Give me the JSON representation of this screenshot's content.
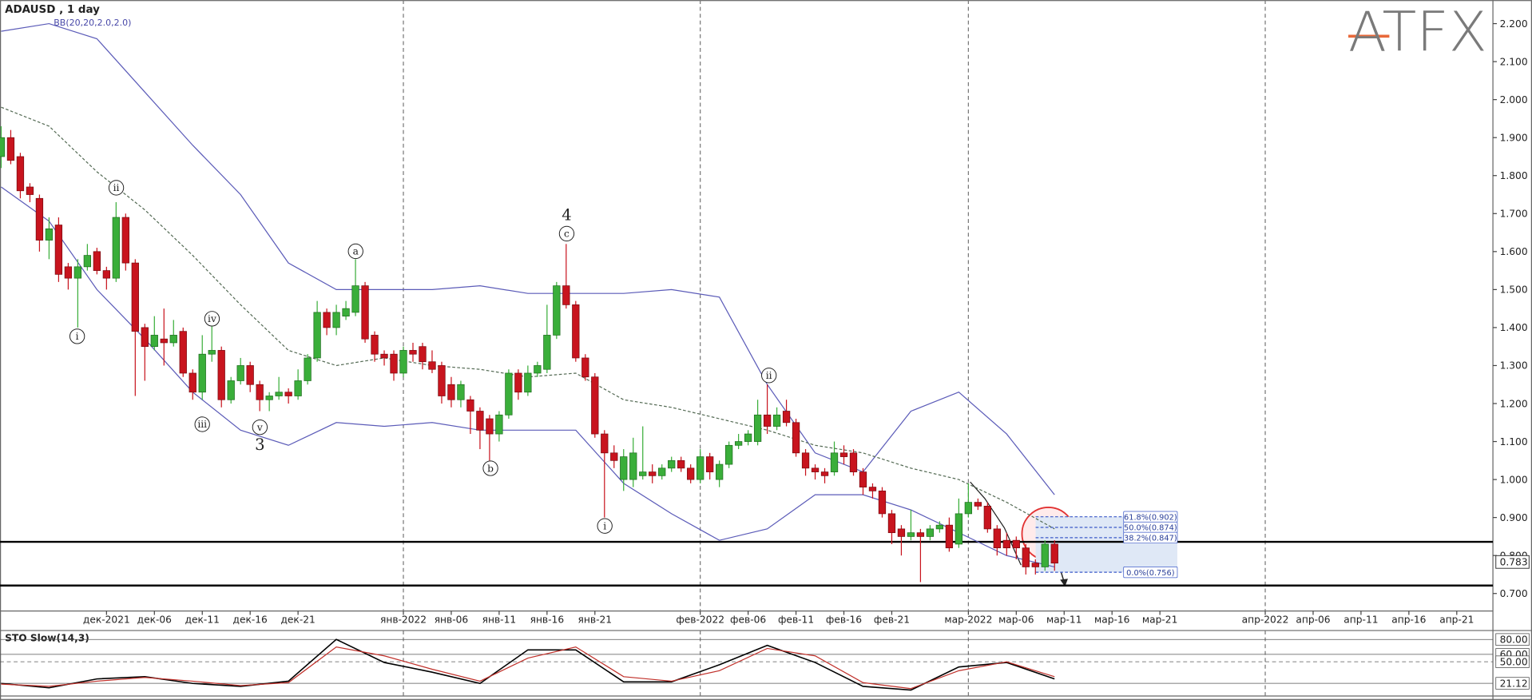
{
  "chart_data": [
    {
      "type": "candlestick",
      "title": "ADAUSD , 1 day",
      "indicator_label": "BB(20,20,2.0,2.0)",
      "logo": "ATFX",
      "up_color": "#3aae3a",
      "down_color": "#c8141e",
      "band_color": "#5b5bb8",
      "middle_color": "#556b55",
      "xlim": [
        "2021-11-20",
        "2022-04-24"
      ],
      "ylim": [
        0.654,
        2.262
      ],
      "yticks": [
        {
          "value": 2.2,
          "label": "2.200"
        },
        {
          "value": 2.1,
          "label": "2.100"
        },
        {
          "value": 2.0,
          "label": "2.000"
        },
        {
          "value": 1.9,
          "label": "1.900"
        },
        {
          "value": 1.8,
          "label": "1.800"
        },
        {
          "value": 1.7,
          "label": "1.700"
        },
        {
          "value": 1.6,
          "label": "1.600"
        },
        {
          "value": 1.5,
          "label": "1.500"
        },
        {
          "value": 1.4,
          "label": "1.400"
        },
        {
          "value": 1.3,
          "label": "1.300"
        },
        {
          "value": 1.2,
          "label": "1.200"
        },
        {
          "value": 1.1,
          "label": "1.100"
        },
        {
          "value": 1.0,
          "label": "1.000"
        },
        {
          "value": 0.9,
          "label": "0.900"
        },
        {
          "value": 0.8,
          "label": "0.800"
        },
        {
          "value": 0.7,
          "label": "0.700"
        }
      ],
      "xticks": [
        {
          "value": "2021-12-01",
          "label": "дек-2021"
        },
        {
          "value": "2021-12-06",
          "label": "дек-06"
        },
        {
          "value": "2021-12-11",
          "label": "дек-11"
        },
        {
          "value": "2021-12-16",
          "label": "дек-16"
        },
        {
          "value": "2021-12-21",
          "label": "дек-21"
        },
        {
          "value": "2022-01-01",
          "label": "янв-2022"
        },
        {
          "value": "2022-01-06",
          "label": "янв-06"
        },
        {
          "value": "2022-01-11",
          "label": "янв-11"
        },
        {
          "value": "2022-01-16",
          "label": "янв-16"
        },
        {
          "value": "2022-01-21",
          "label": "янв-21"
        },
        {
          "value": "2022-02-01",
          "label": "фев-2022"
        },
        {
          "value": "2022-02-06",
          "label": "фев-06"
        },
        {
          "value": "2022-02-11",
          "label": "фев-11"
        },
        {
          "value": "2022-02-16",
          "label": "фев-16"
        },
        {
          "value": "2022-02-21",
          "label": "фев-21"
        },
        {
          "value": "2022-03-01",
          "label": "мар-2022"
        },
        {
          "value": "2022-03-06",
          "label": "мар-06"
        },
        {
          "value": "2022-03-11",
          "label": "мар-11"
        },
        {
          "value": "2022-03-16",
          "label": "мар-16"
        },
        {
          "value": "2022-03-21",
          "label": "мар-21"
        },
        {
          "value": "2022-04-01",
          "label": "апр-2022"
        },
        {
          "value": "2022-04-06",
          "label": "апр-06"
        },
        {
          "value": "2022-04-11",
          "label": "апр-11"
        },
        {
          "value": "2022-04-16",
          "label": "апр-16"
        },
        {
          "value": "2022-04-21",
          "label": "апр-21"
        }
      ],
      "xgrid": [
        "2022-01-01",
        "2022-02-01",
        "2022-03-01",
        "2022-04-01"
      ],
      "x": [
        "2021-11-20",
        "2021-11-21",
        "2021-11-22",
        "2021-11-23",
        "2021-11-24",
        "2021-11-25",
        "2021-11-26",
        "2021-11-27",
        "2021-11-28",
        "2021-11-29",
        "2021-11-30",
        "2021-12-01",
        "2021-12-02",
        "2021-12-03",
        "2021-12-04",
        "2021-12-05",
        "2021-12-06",
        "2021-12-07",
        "2021-12-08",
        "2021-12-09",
        "2021-12-10",
        "2021-12-11",
        "2021-12-12",
        "2021-12-13",
        "2021-12-14",
        "2021-12-15",
        "2021-12-16",
        "2021-12-17",
        "2021-12-18",
        "2021-12-19",
        "2021-12-20",
        "2021-12-21",
        "2021-12-22",
        "2021-12-23",
        "2021-12-24",
        "2021-12-25",
        "2021-12-26",
        "2021-12-27",
        "2021-12-28",
        "2021-12-29",
        "2021-12-30",
        "2021-12-31",
        "2022-01-01",
        "2022-01-02",
        "2022-01-03",
        "2022-01-04",
        "2022-01-05",
        "2022-01-06",
        "2022-01-07",
        "2022-01-08",
        "2022-01-09",
        "2022-01-10",
        "2022-01-11",
        "2022-01-12",
        "2022-01-13",
        "2022-01-14",
        "2022-01-15",
        "2022-01-16",
        "2022-01-17",
        "2022-01-18",
        "2022-01-19",
        "2022-01-20",
        "2022-01-21",
        "2022-01-22",
        "2022-01-23",
        "2022-01-24",
        "2022-01-25",
        "2022-01-26",
        "2022-01-27",
        "2022-01-28",
        "2022-01-29",
        "2022-01-30",
        "2022-01-31",
        "2022-02-01",
        "2022-02-02",
        "2022-02-03",
        "2022-02-04",
        "2022-02-05",
        "2022-02-06",
        "2022-02-07",
        "2022-02-08",
        "2022-02-09",
        "2022-02-10",
        "2022-02-11",
        "2022-02-12",
        "2022-02-13",
        "2022-02-14",
        "2022-02-15",
        "2022-02-16",
        "2022-02-17",
        "2022-02-18",
        "2022-02-19",
        "2022-02-20",
        "2022-02-21",
        "2022-02-22",
        "2022-02-23",
        "2022-02-24",
        "2022-02-25",
        "2022-02-26",
        "2022-02-27",
        "2022-02-28",
        "2022-03-01",
        "2022-03-02",
        "2022-03-03",
        "2022-03-04",
        "2022-03-05",
        "2022-03-06",
        "2022-03-07",
        "2022-03-08",
        "2022-03-09",
        "2022-03-10"
      ],
      "open": [
        1.85,
        1.9,
        1.85,
        1.77,
        1.74,
        1.63,
        1.67,
        1.56,
        1.53,
        1.56,
        1.6,
        1.55,
        1.53,
        1.69,
        1.57,
        1.4,
        1.35,
        1.37,
        1.36,
        1.39,
        1.28,
        1.23,
        1.33,
        1.34,
        1.21,
        1.26,
        1.3,
        1.25,
        1.21,
        1.22,
        1.23,
        1.22,
        1.26,
        1.32,
        1.44,
        1.4,
        1.43,
        1.44,
        1.51,
        1.38,
        1.33,
        1.33,
        1.28,
        1.34,
        1.35,
        1.31,
        1.3,
        1.25,
        1.21,
        1.21,
        1.18,
        1.16,
        1.12,
        1.17,
        1.28,
        1.23,
        1.28,
        1.29,
        1.38,
        1.51,
        1.46,
        1.32,
        1.27,
        1.12,
        1.07,
        1.0,
        1.0,
        1.01,
        1.02,
        1.01,
        1.03,
        1.05,
        1.03,
        1.0,
        1.06,
        1.0,
        1.04,
        1.09,
        1.1,
        1.1,
        1.17,
        1.14,
        1.18,
        1.15,
        1.07,
        1.03,
        1.02,
        1.02,
        1.07,
        1.07,
        1.02,
        0.98,
        0.97,
        0.91,
        0.87,
        0.85,
        0.86,
        0.85,
        0.87,
        0.88,
        0.83,
        0.91,
        0.94,
        0.93,
        0.87,
        0.84,
        0.84,
        0.82,
        0.78,
        0.77,
        0.83
      ],
      "high": [
        1.93,
        1.92,
        1.86,
        1.78,
        1.75,
        1.69,
        1.69,
        1.57,
        1.58,
        1.62,
        1.61,
        1.56,
        1.73,
        1.7,
        1.58,
        1.41,
        1.43,
        1.45,
        1.42,
        1.4,
        1.29,
        1.38,
        1.41,
        1.35,
        1.27,
        1.32,
        1.31,
        1.26,
        1.23,
        1.27,
        1.24,
        1.29,
        1.33,
        1.47,
        1.45,
        1.46,
        1.47,
        1.58,
        1.52,
        1.39,
        1.34,
        1.34,
        1.35,
        1.36,
        1.36,
        1.34,
        1.31,
        1.27,
        1.26,
        1.22,
        1.19,
        1.17,
        1.18,
        1.29,
        1.29,
        1.3,
        1.31,
        1.46,
        1.52,
        1.62,
        1.47,
        1.33,
        1.28,
        1.13,
        1.09,
        1.08,
        1.11,
        1.14,
        1.04,
        1.04,
        1.06,
        1.06,
        1.04,
        1.08,
        1.07,
        1.05,
        1.1,
        1.12,
        1.13,
        1.21,
        1.25,
        1.19,
        1.21,
        1.16,
        1.08,
        1.04,
        1.03,
        1.1,
        1.09,
        1.08,
        1.03,
        0.99,
        0.98,
        0.92,
        0.88,
        0.92,
        0.87,
        0.88,
        0.89,
        0.9,
        0.95,
        0.99,
        0.95,
        0.94,
        0.88,
        0.86,
        0.85,
        0.83,
        0.79,
        0.84,
        0.84
      ],
      "low": [
        1.82,
        1.83,
        1.74,
        1.73,
        1.6,
        1.58,
        1.52,
        1.5,
        1.4,
        1.55,
        1.54,
        1.5,
        1.52,
        1.55,
        1.22,
        1.26,
        1.34,
        1.3,
        1.35,
        1.27,
        1.21,
        1.21,
        1.31,
        1.19,
        1.2,
        1.25,
        1.23,
        1.18,
        1.18,
        1.21,
        1.2,
        1.21,
        1.25,
        1.31,
        1.38,
        1.38,
        1.42,
        1.43,
        1.36,
        1.31,
        1.3,
        1.26,
        1.27,
        1.31,
        1.29,
        1.28,
        1.2,
        1.19,
        1.19,
        1.12,
        1.08,
        1.05,
        1.1,
        1.16,
        1.21,
        1.22,
        1.27,
        1.28,
        1.37,
        1.45,
        1.31,
        1.26,
        1.11,
        0.9,
        1.03,
        0.97,
        0.98,
        1.0,
        0.99,
        1.0,
        1.02,
        1.02,
        0.99,
        0.99,
        1.0,
        0.98,
        1.03,
        1.08,
        1.09,
        1.09,
        1.12,
        1.13,
        1.14,
        1.06,
        1.01,
        1.0,
        0.99,
        1.01,
        1.04,
        1.01,
        0.96,
        0.95,
        0.9,
        0.83,
        0.8,
        0.84,
        0.73,
        0.84,
        0.86,
        0.81,
        0.82,
        0.9,
        0.92,
        0.86,
        0.8,
        0.8,
        0.79,
        0.75,
        0.75,
        0.76,
        0.76
      ],
      "close": [
        1.9,
        1.84,
        1.76,
        1.75,
        1.63,
        1.66,
        1.54,
        1.53,
        1.56,
        1.59,
        1.55,
        1.53,
        1.69,
        1.57,
        1.39,
        1.35,
        1.38,
        1.36,
        1.38,
        1.28,
        1.23,
        1.33,
        1.34,
        1.21,
        1.26,
        1.3,
        1.25,
        1.21,
        1.22,
        1.23,
        1.22,
        1.26,
        1.32,
        1.44,
        1.4,
        1.44,
        1.45,
        1.51,
        1.37,
        1.33,
        1.32,
        1.28,
        1.34,
        1.33,
        1.31,
        1.29,
        1.22,
        1.21,
        1.25,
        1.18,
        1.13,
        1.12,
        1.17,
        1.28,
        1.23,
        1.28,
        1.3,
        1.38,
        1.51,
        1.46,
        1.32,
        1.27,
        1.12,
        1.07,
        1.05,
        1.06,
        1.07,
        1.02,
        1.01,
        1.03,
        1.05,
        1.03,
        1.0,
        1.06,
        1.02,
        1.04,
        1.09,
        1.1,
        1.12,
        1.17,
        1.14,
        1.17,
        1.15,
        1.07,
        1.03,
        1.02,
        1.01,
        1.07,
        1.06,
        1.02,
        0.98,
        0.97,
        0.91,
        0.86,
        0.85,
        0.86,
        0.85,
        0.87,
        0.88,
        0.82,
        0.91,
        0.94,
        0.93,
        0.87,
        0.82,
        0.82,
        0.82,
        0.77,
        0.77,
        0.83,
        0.78
      ],
      "bands": {
        "x": [
          "2021-11-20",
          "2021-11-25",
          "2021-11-30",
          "2021-12-05",
          "2021-12-10",
          "2021-12-15",
          "2021-12-20",
          "2021-12-25",
          "2021-12-30",
          "2022-01-04",
          "2022-01-09",
          "2022-01-14",
          "2022-01-19",
          "2022-01-24",
          "2022-01-29",
          "2022-02-03",
          "2022-02-08",
          "2022-02-13",
          "2022-02-18",
          "2022-02-23",
          "2022-02-28",
          "2022-03-05",
          "2022-03-10"
        ],
        "upper": [
          2.18,
          2.2,
          2.16,
          2.02,
          1.88,
          1.75,
          1.57,
          1.5,
          1.5,
          1.5,
          1.51,
          1.49,
          1.49,
          1.49,
          1.5,
          1.48,
          1.25,
          1.07,
          1.02,
          1.18,
          1.23,
          1.12,
          0.96
        ],
        "middle": [
          1.98,
          1.93,
          1.81,
          1.71,
          1.59,
          1.46,
          1.34,
          1.3,
          1.32,
          1.3,
          1.29,
          1.27,
          1.28,
          1.21,
          1.19,
          1.16,
          1.13,
          1.09,
          1.07,
          1.03,
          1.0,
          0.94,
          0.87
        ],
        "lower": [
          1.77,
          1.68,
          1.5,
          1.37,
          1.23,
          1.13,
          1.09,
          1.15,
          1.14,
          1.15,
          1.13,
          1.13,
          1.13,
          0.99,
          0.91,
          0.84,
          0.87,
          0.96,
          0.96,
          0.92,
          0.86,
          0.8,
          0.77
        ]
      },
      "levels": [
        0.836,
        0.721
      ],
      "fibonacci": [
        {
          "value": 0.902,
          "label": "61.8%(0.902)"
        },
        {
          "value": 0.874,
          "label": "50.0%(0.874)"
        },
        {
          "value": 0.847,
          "label": "38.2%(0.847)"
        },
        {
          "value": 0.756,
          "label": "0.0%(0.756)"
        }
      ],
      "last_price": 0.783,
      "wave_labels": [
        "ii",
        "i",
        "iv",
        "iii",
        "v",
        "3",
        "a",
        "4",
        "c",
        "b",
        "i",
        "ii"
      ]
    },
    {
      "type": "line",
      "title": "STO Slow(14,3)",
      "ylim": [
        4,
        92
      ],
      "yticks": [
        {
          "value": 80,
          "label": "80.00"
        },
        {
          "value": 60,
          "label": "60.00"
        },
        {
          "value": 50,
          "label": "50.00"
        },
        21.12
      ],
      "x": [
        "2021-11-20",
        "2021-11-25",
        "2021-11-30",
        "2021-12-05",
        "2021-12-10",
        "2021-12-15",
        "2021-12-20",
        "2021-12-25",
        "2021-12-30",
        "2022-01-04",
        "2022-01-09",
        "2022-01-14",
        "2022-01-19",
        "2022-01-24",
        "2022-01-29",
        "2022-02-03",
        "2022-02-08",
        "2022-02-13",
        "2022-02-18",
        "2022-02-23",
        "2022-02-28",
        "2022-03-05",
        "2022-03-10"
      ],
      "series": [
        {
          "color": "#000000",
          "values": [
            21,
            15,
            27,
            30,
            21,
            17,
            24,
            80,
            49,
            36,
            21,
            66,
            66,
            23,
            23,
            46,
            72,
            49,
            17,
            12,
            43,
            49,
            27
          ]
        },
        {
          "color": "#c0302a",
          "values": [
            20,
            17,
            24,
            29,
            24,
            18,
            22,
            70,
            58,
            40,
            24,
            55,
            70,
            30,
            24,
            38,
            68,
            58,
            22,
            14,
            38,
            50,
            30
          ]
        }
      ]
    }
  ]
}
